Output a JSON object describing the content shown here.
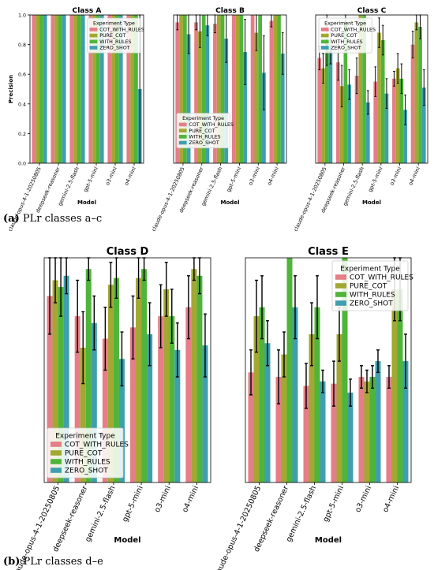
{
  "captions": [
    {
      "label": "(a)",
      "text": "PLr classes a–c"
    },
    {
      "label": "(b)",
      "text": "PLr classes d–e"
    }
  ],
  "colors": {
    "COT_WITH_RULES": "#e57e86",
    "PURE_COT": "#a2a831",
    "WITH_RULES": "#4fb53a",
    "ZERO_SHOT": "#3f9fae"
  },
  "chart_data": [
    {
      "type": "bar",
      "title": "Class A",
      "xlabel": "Model",
      "ylabel": "Precision",
      "ylim": [
        0,
        1.0
      ],
      "yticks": [
        0.0,
        0.2,
        0.4,
        0.6,
        0.8,
        1.0
      ],
      "grid": false,
      "legend": {
        "title": "Experiment Type",
        "placement": "top-right"
      },
      "categories": [
        "claude-opus-4-1-20250805",
        "deepseek-reasoner",
        "gemini-2.5-flash",
        "gpt-5-mini",
        "o3-mini",
        "o4-mini"
      ],
      "series": [
        {
          "name": "COT_WITH_RULES",
          "values": [
            1.0,
            1.0,
            1.0,
            1.0,
            1.0,
            1.0
          ],
          "err": [
            0,
            0,
            0,
            0,
            0,
            0
          ]
        },
        {
          "name": "PURE_COT",
          "values": [
            1.0,
            1.0,
            1.0,
            1.0,
            1.0,
            1.0
          ],
          "err": [
            0,
            0,
            0,
            0,
            0,
            0
          ]
        },
        {
          "name": "WITH_RULES",
          "values": [
            1.0,
            1.0,
            1.0,
            1.0,
            1.0,
            1.0
          ],
          "err": [
            0,
            0,
            0,
            0,
            0,
            0
          ]
        },
        {
          "name": "ZERO_SHOT",
          "values": [
            1.0,
            1.0,
            1.0,
            1.0,
            1.0,
            0.5
          ],
          "err": [
            0,
            0,
            0,
            0,
            0,
            0.5
          ]
        }
      ]
    },
    {
      "type": "bar",
      "title": "Class B",
      "xlabel": "Model",
      "ylabel": "",
      "ylim": [
        0,
        1.0
      ],
      "yticks": [],
      "grid": false,
      "legend": {
        "title": "Experiment Type",
        "placement": "center-left"
      },
      "categories": [
        "claude-opus-4-1-20250805",
        "deepseek-reasoner",
        "gemini-2.5-flash",
        "gpt-5-mini",
        "o3-mini",
        "o4-mini"
      ],
      "series": [
        {
          "name": "COT_WITH_RULES",
          "values": [
            0.95,
            0.95,
            0.94,
            1.0,
            1.0,
            0.96
          ],
          "err": [
            0.05,
            0.05,
            0.06,
            0,
            0,
            0.04
          ]
        },
        {
          "name": "PURE_COT",
          "values": [
            1.0,
            0.89,
            1.0,
            1.0,
            0.88,
            1.0
          ],
          "err": [
            0,
            0.11,
            0,
            0,
            0.12,
            0
          ]
        },
        {
          "name": "WITH_RULES",
          "values": [
            1.0,
            1.0,
            1.0,
            1.0,
            1.0,
            1.0
          ],
          "err": [
            0,
            0,
            0,
            0,
            0,
            0
          ]
        },
        {
          "name": "ZERO_SHOT",
          "values": [
            0.87,
            0.93,
            0.84,
            0.75,
            0.61,
            0.74
          ],
          "err": [
            0.13,
            0.07,
            0.16,
            0.22,
            0.25,
            0.14
          ]
        }
      ]
    },
    {
      "type": "bar",
      "title": "Class C",
      "xlabel": "Model",
      "ylabel": "",
      "ylim": [
        0,
        1.0
      ],
      "yticks": [],
      "grid": false,
      "legend": {
        "title": "Experiment Type",
        "placement": "top-left"
      },
      "categories": [
        "claude-opus-4-1-20250805",
        "deepseek-reasoner",
        "gemini-2.5-flash",
        "gpt-5-mini",
        "o3-mini",
        "o4-mini"
      ],
      "series": [
        {
          "name": "COT_WITH_RULES",
          "values": [
            0.71,
            0.68,
            0.59,
            0.55,
            0.57,
            0.8
          ],
          "err": [
            0.08,
            0.12,
            0.12,
            0.1,
            0.05,
            0.09
          ]
        },
        {
          "name": "PURE_COT",
          "values": [
            0.64,
            0.52,
            1.0,
            0.88,
            0.64,
            0.95
          ],
          "err": [
            0.1,
            0.14,
            0,
            0.1,
            0.1,
            0.05
          ]
        },
        {
          "name": "WITH_RULES",
          "values": [
            0.83,
            0.96,
            1.0,
            0.83,
            0.57,
            0.92
          ],
          "err": [
            0.17,
            0.04,
            0,
            0.1,
            0.1,
            0.08
          ]
        },
        {
          "name": "ZERO_SHOT",
          "values": [
            0.79,
            0.53,
            0.41,
            0.47,
            0.36,
            0.51
          ],
          "err": [
            0.12,
            0.1,
            0.08,
            0.1,
            0.1,
            0.12
          ]
        }
      ]
    },
    {
      "type": "bar",
      "title": "Class D",
      "xlabel": "Model",
      "ylabel": "",
      "ylim": [
        0,
        1.0
      ],
      "yticks": [],
      "grid": false,
      "legend": {
        "title": "Experiment Type",
        "placement": "bottom-left"
      },
      "categories": [
        "claude-opus-4-1-20250805",
        "deepseek-reasoner",
        "gemini-2.5-flash",
        "gpt-5-mini",
        "o3-mini",
        "o4-mini"
      ],
      "series": [
        {
          "name": "COT_WITH_RULES",
          "values": [
            0.83,
            0.74,
            0.64,
            0.69,
            0.74,
            0.78
          ],
          "err": [
            0.17,
            0.16,
            0.14,
            0.14,
            0.14,
            0.14
          ]
        },
        {
          "name": "PURE_COT",
          "values": [
            0.9,
            0.6,
            0.88,
            0.91,
            0.86,
            0.95
          ],
          "err": [
            0.1,
            0.16,
            0.1,
            0.09,
            0.12,
            0.05
          ]
        },
        {
          "name": "WITH_RULES",
          "values": [
            0.87,
            0.95,
            0.91,
            0.95,
            0.74,
            0.92
          ],
          "err": [
            0.13,
            0.05,
            0.09,
            0.05,
            0.12,
            0.08
          ]
        },
        {
          "name": "ZERO_SHOT",
          "values": [
            0.92,
            0.71,
            0.55,
            0.66,
            0.59,
            0.61
          ],
          "err": [
            0.08,
            0.12,
            0.12,
            0.14,
            0.12,
            0.14
          ]
        }
      ]
    },
    {
      "type": "bar",
      "title": "Class E",
      "xlabel": "Model",
      "ylabel": "",
      "ylim": [
        0,
        1.0
      ],
      "yticks": [],
      "grid": false,
      "legend": {
        "title": "Experiment Type",
        "placement": "top-right"
      },
      "categories": [
        "claude-opus-4-1-20250805",
        "deepseek-reasoner",
        "gemini-2.5-flash",
        "gpt-5-mini",
        "o3-mini",
        "o4-mini"
      ],
      "series": [
        {
          "name": "COT_WITH_RULES",
          "values": [
            0.49,
            0.47,
            0.43,
            0.44,
            0.47,
            0.47
          ],
          "err": [
            0.1,
            0.12,
            0.1,
            0.1,
            0.05,
            0.05
          ]
        },
        {
          "name": "PURE_COT",
          "values": [
            0.74,
            0.57,
            0.66,
            0.66,
            0.45,
            0.86
          ],
          "err": [
            0.16,
            0.1,
            0.14,
            0.12,
            0.05,
            0.14
          ]
        },
        {
          "name": "WITH_RULES",
          "values": [
            0.78,
            1.0,
            0.78,
            1.0,
            0.47,
            0.86
          ],
          "err": [
            0.14,
            0,
            0.14,
            0,
            0.05,
            0.14
          ]
        },
        {
          "name": "ZERO_SHOT",
          "values": [
            0.62,
            0.78,
            0.45,
            0.4,
            0.54,
            0.54
          ],
          "err": [
            0.1,
            0.14,
            0.05,
            0.06,
            0.05,
            0.12
          ]
        }
      ]
    }
  ]
}
